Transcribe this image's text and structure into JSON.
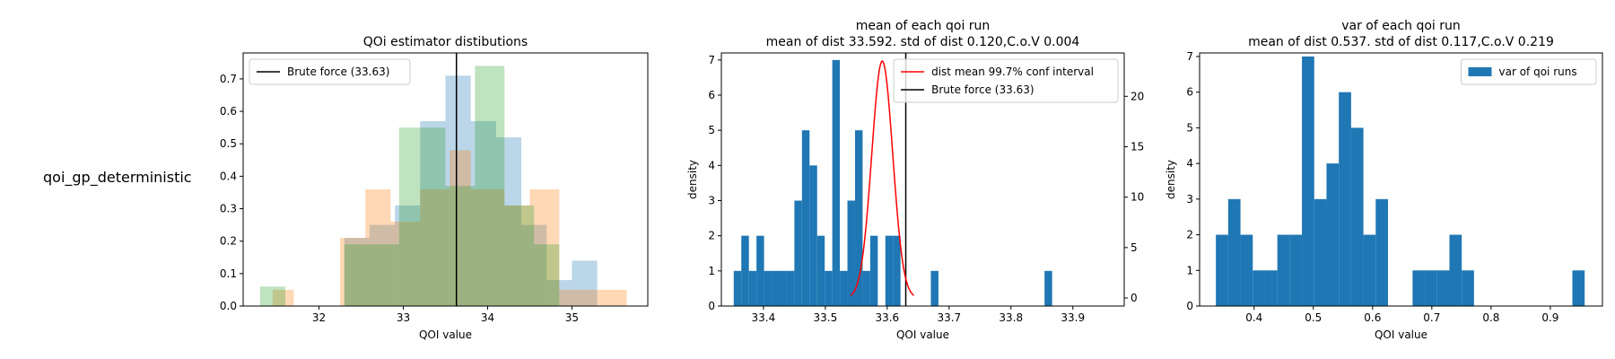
{
  "row_label": "qoi_gp_deterministic",
  "chart_data": [
    {
      "type": "bar",
      "title": "QOi estimator distibutions",
      "xlabel": "QOI value",
      "ylabel": "",
      "xlim": [
        31.1,
        35.9
      ],
      "ylim": [
        0,
        0.78
      ],
      "xticks": [
        32,
        33,
        34,
        35
      ],
      "yticks": [
        0.0,
        0.1,
        0.2,
        0.3,
        0.4,
        0.5,
        0.6,
        0.7
      ],
      "ytick_labels": [
        "0.0",
        "0.1",
        "0.2",
        "0.3",
        "0.4",
        "0.5",
        "0.6",
        "0.7"
      ],
      "legend_position": "upper left",
      "legend": [
        {
          "label": "Brute force (33.63)",
          "kind": "line",
          "color": "#000000"
        }
      ],
      "vlines": [
        {
          "x": 33.63,
          "color": "#000000"
        }
      ],
      "series": [
        {
          "color": "#1f77b4",
          "opacity": 0.3,
          "bins": [
            [
              32.3,
              32.6,
              0.21
            ],
            [
              32.6,
              32.9,
              0.25
            ],
            [
              32.9,
              33.2,
              0.31
            ],
            [
              33.2,
              33.5,
              0.57
            ],
            [
              33.5,
              33.8,
              0.71
            ],
            [
              33.8,
              34.1,
              0.57
            ],
            [
              34.1,
              34.4,
              0.52
            ],
            [
              34.4,
              34.7,
              0.25
            ],
            [
              34.7,
              35.0,
              0.08
            ],
            [
              35.0,
              35.3,
              0.14
            ]
          ]
        },
        {
          "color": "#ff7f0e",
          "opacity": 0.3,
          "bins": [
            [
              31.45,
              31.7,
              0.05
            ],
            [
              32.25,
              32.55,
              0.21
            ],
            [
              32.55,
              32.85,
              0.36
            ],
            [
              32.85,
              33.2,
              0.26
            ],
            [
              33.2,
              33.55,
              0.36
            ],
            [
              33.55,
              33.8,
              0.48
            ],
            [
              33.8,
              34.2,
              0.36
            ],
            [
              34.2,
              34.5,
              0.31
            ],
            [
              34.5,
              34.85,
              0.36
            ],
            [
              34.85,
              35.25,
              0.05
            ],
            [
              35.25,
              35.65,
              0.05
            ]
          ]
        },
        {
          "color": "#2ca02c",
          "opacity": 0.3,
          "bins": [
            [
              31.3,
              31.6,
              0.06
            ],
            [
              32.3,
              32.95,
              0.19
            ],
            [
              32.95,
              33.2,
              0.55
            ],
            [
              33.2,
              33.5,
              0.55
            ],
            [
              33.5,
              33.85,
              0.37
            ],
            [
              33.85,
              34.2,
              0.74
            ],
            [
              34.2,
              34.55,
              0.31
            ],
            [
              34.55,
              34.85,
              0.19
            ]
          ]
        }
      ]
    },
    {
      "type": "bar",
      "title": "mean of each qoi run",
      "subtitle": "mean of dist 33.592. std of dist 0.120,C.o.V 0.004",
      "xlabel": "QOI value",
      "ylabel": "density",
      "xlim": [
        33.332,
        33.983
      ],
      "ylim": [
        0,
        7.2
      ],
      "xticks": [
        33.4,
        33.5,
        33.6,
        33.7,
        33.8,
        33.9
      ],
      "yticks": [
        0,
        1,
        2,
        3,
        4,
        5,
        6,
        7
      ],
      "y2lim": [
        -0.8,
        24.3
      ],
      "y2ticks": [
        0,
        5,
        10,
        15,
        20
      ],
      "legend_position": "upper right",
      "legend": [
        {
          "label": "dist mean 99.7% conf interval",
          "kind": "line",
          "color": "#ff0000"
        },
        {
          "label": "Brute force (33.63)",
          "kind": "line",
          "color": "#000000"
        }
      ],
      "vlines": [
        {
          "x": 33.63,
          "color": "#000000"
        }
      ],
      "bar_color": "#1f77b4",
      "bin_start": 33.352,
      "bin_width": 0.01225,
      "values": [
        1,
        2,
        1,
        2,
        1,
        1,
        1,
        1,
        3,
        5,
        4,
        2,
        1,
        7,
        1,
        3,
        5,
        1,
        2,
        0,
        2,
        2,
        0,
        0,
        0,
        0,
        1,
        0,
        0,
        0,
        0,
        0,
        0,
        0,
        0,
        0,
        0,
        0,
        0,
        0,
        0,
        1
      ],
      "curve": {
        "mean": 33.592,
        "sd": 0.01697,
        "x_range": [
          33.541,
          33.643
        ],
        "peak": 23.5,
        "color": "#ff0000",
        "axis": "right"
      }
    },
    {
      "type": "bar",
      "title": "var of each qoi run",
      "subtitle": "mean of dist 0.537. std of dist 0.117,C.o.V 0.219",
      "xlabel": "QOI value",
      "ylabel": "density",
      "xlim": [
        0.308,
        0.988
      ],
      "ylim": [
        0,
        7.1
      ],
      "xticks": [
        0.4,
        0.5,
        0.6,
        0.7,
        0.8,
        0.9
      ],
      "yticks": [
        0,
        1,
        2,
        3,
        4,
        5,
        6,
        7
      ],
      "legend_position": "upper right",
      "legend": [
        {
          "label": "var of qoi runs",
          "kind": "patch",
          "color": "#1f77b4"
        }
      ],
      "bar_color": "#1f77b4",
      "bin_start": 0.3355,
      "bin_width": 0.02075,
      "values": [
        2,
        3,
        2,
        1,
        1,
        2,
        2,
        7,
        3,
        4,
        6,
        5,
        2,
        3,
        0,
        0,
        1,
        1,
        1,
        2,
        1,
        0,
        0,
        0,
        0,
        0,
        0,
        0,
        0,
        1
      ]
    }
  ]
}
